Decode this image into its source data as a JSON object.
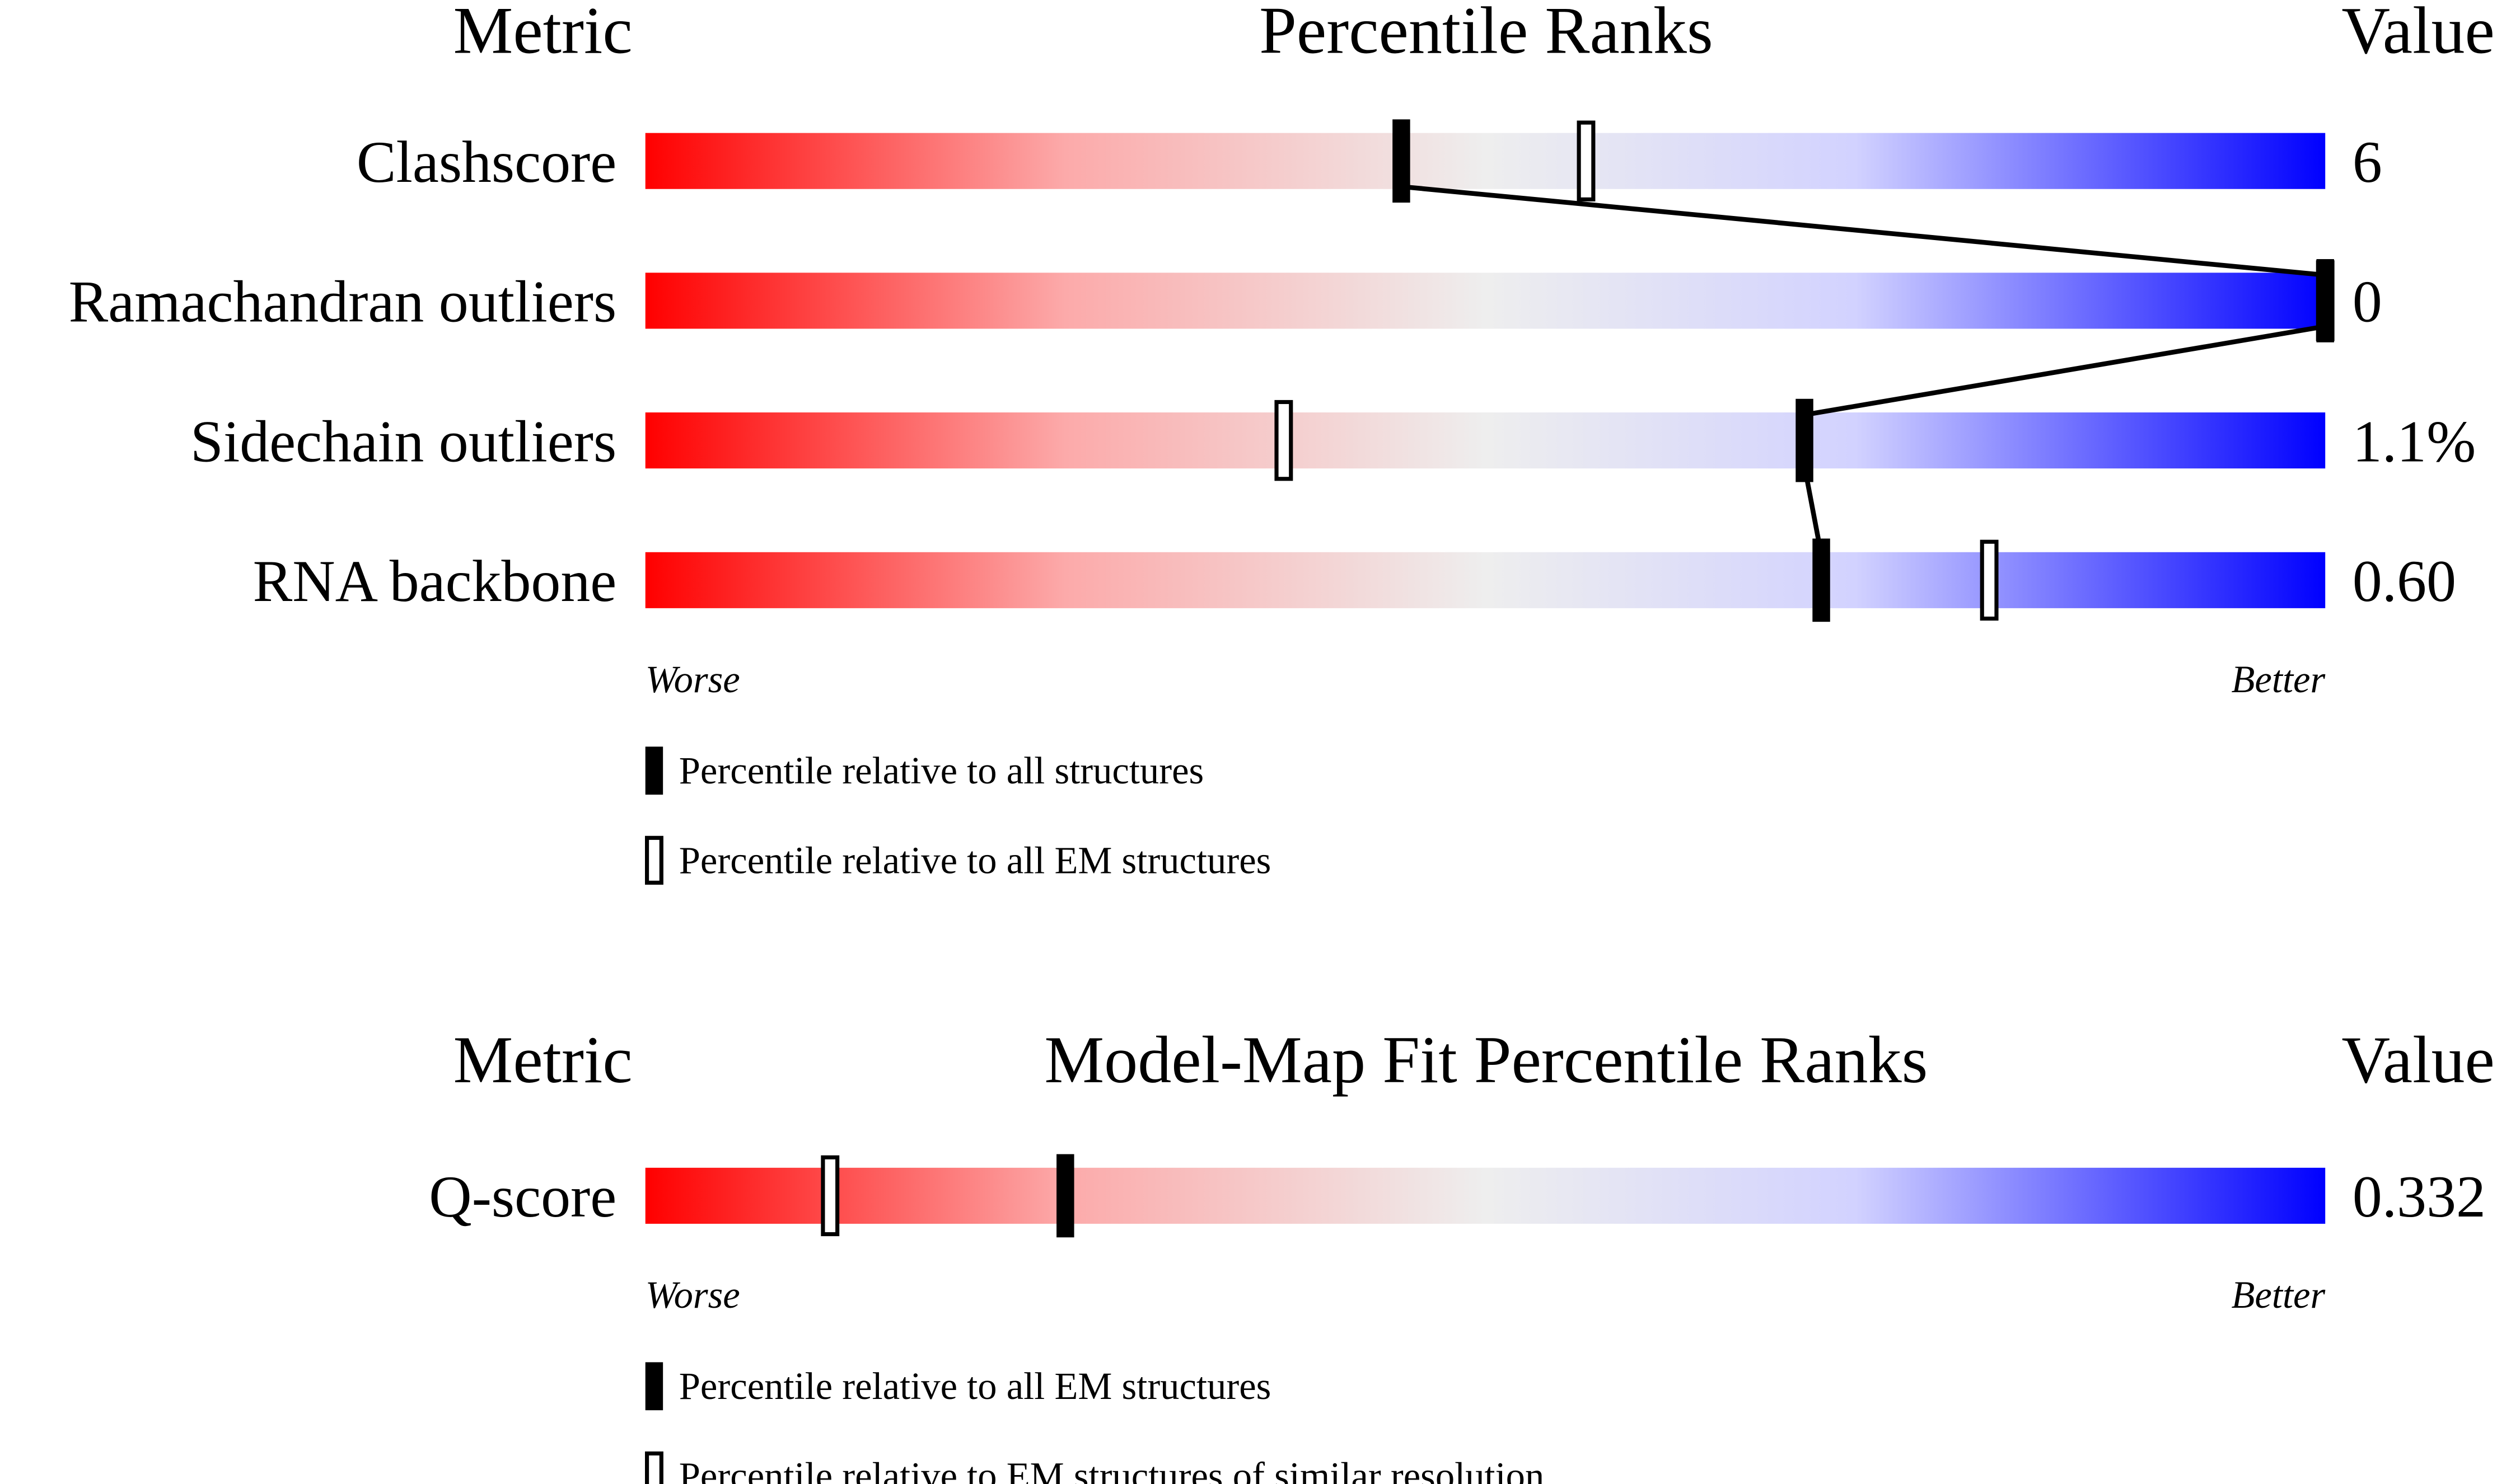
{
  "chart_data": [
    {
      "type": "bar",
      "subtype": "percentile-slider",
      "headers": {
        "metric": "Metric",
        "title": "Percentile Ranks",
        "value": "Value"
      },
      "axis_range": [
        0,
        100
      ],
      "ends": {
        "left": "Worse",
        "right": "Better"
      },
      "gradient_colors": [
        "#ff0000",
        "#f0f0f0",
        "#0000ff"
      ],
      "rows": [
        {
          "metric": "Clashscore",
          "value": "6",
          "percentile_all": 45,
          "percentile_em": 56
        },
        {
          "metric": "Ramachandran outliers",
          "value": "0",
          "percentile_all": 100,
          "percentile_em": 100
        },
        {
          "metric": "Sidechain outliers",
          "value": "1.1%",
          "percentile_all": 69,
          "percentile_em": 38
        },
        {
          "metric": "RNA backbone",
          "value": "0.60",
          "percentile_all": 70,
          "percentile_em": 80
        }
      ],
      "legend": [
        {
          "marker": "filled",
          "label": "Percentile relative to all structures"
        },
        {
          "marker": "open",
          "label": "Percentile relative to all EM structures"
        }
      ]
    },
    {
      "type": "bar",
      "subtype": "percentile-slider",
      "headers": {
        "metric": "Metric",
        "title": "Model-Map Fit Percentile Ranks",
        "value": "Value"
      },
      "axis_range": [
        0,
        100
      ],
      "ends": {
        "left": "Worse",
        "right": "Better"
      },
      "gradient_colors": [
        "#ff0000",
        "#f0f0f0",
        "#0000ff"
      ],
      "rows": [
        {
          "metric": "Q-score",
          "value": "0.332",
          "percentile_all": 25,
          "percentile_em": 11
        }
      ],
      "legend": [
        {
          "marker": "filled",
          "label": "Percentile relative to all EM structures"
        },
        {
          "marker": "open",
          "label": "Percentile relative to EM structures of similar resolution"
        }
      ]
    }
  ]
}
